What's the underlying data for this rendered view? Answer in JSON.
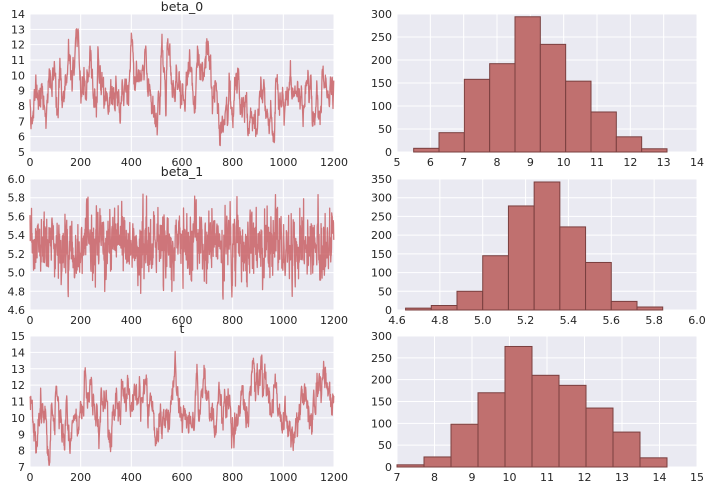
{
  "colors": {
    "accent": "#c44e52",
    "bar_fill": "#c0706f",
    "bar_edge": "#7a3f3f",
    "panel_bg": "#eaeaf2",
    "grid": "#ffffff"
  },
  "chart_data": [
    {
      "id": "trace-beta0",
      "type": "line",
      "title": "beta_0",
      "xlabel": "",
      "ylabel": "",
      "xlim": [
        0,
        1200
      ],
      "ylim": [
        5,
        14
      ],
      "xticks": [
        "0",
        "200",
        "400",
        "600",
        "800",
        "1000",
        "1200"
      ],
      "yticks": [
        "5",
        "6",
        "7",
        "8",
        "9",
        "10",
        "11",
        "12",
        "13",
        "14"
      ],
      "trace": {
        "n": 1200,
        "mean": 9.0,
        "sd": 1.35,
        "phi": 0.93,
        "min": 5.4,
        "max": 13.1,
        "seed": 11
      }
    },
    {
      "id": "hist-beta0",
      "type": "bar",
      "title": "",
      "xlim": [
        5,
        14
      ],
      "ylim": [
        0,
        300
      ],
      "xticks": [
        "5",
        "6",
        "7",
        "8",
        "9",
        "10",
        "11",
        "12",
        "13",
        "14"
      ],
      "yticks": [
        "0",
        "50",
        "100",
        "150",
        "200",
        "250",
        "300"
      ],
      "bin_edges": [
        5.5,
        6.26,
        7.02,
        7.78,
        8.54,
        9.3,
        10.06,
        10.82,
        11.58,
        12.34,
        13.1
      ],
      "values": [
        8,
        42,
        158,
        192,
        294,
        234,
        154,
        87,
        33,
        7
      ]
    },
    {
      "id": "trace-beta1",
      "type": "line",
      "title": "beta_1",
      "xlabel": "",
      "ylabel": "",
      "xlim": [
        0,
        1200
      ],
      "ylim": [
        4.6,
        6.0
      ],
      "xticks": [
        "0",
        "200",
        "400",
        "600",
        "800",
        "1000",
        "1200"
      ],
      "yticks": [
        "4.6",
        "4.8",
        "5.0",
        "5.2",
        "5.4",
        "5.6",
        "5.8",
        "6.0"
      ],
      "trace": {
        "n": 1200,
        "mean": 5.28,
        "sd": 0.18,
        "phi": 0.35,
        "min": 4.64,
        "max": 5.84,
        "seed": 23
      }
    },
    {
      "id": "hist-beta1",
      "type": "bar",
      "title": "",
      "xlim": [
        4.6,
        6.0
      ],
      "ylim": [
        0,
        350
      ],
      "xticks": [
        "4.6",
        "4.8",
        "5.0",
        "5.2",
        "5.4",
        "5.6",
        "5.8",
        "6.0"
      ],
      "yticks": [
        "0",
        "50",
        "100",
        "150",
        "200",
        "250",
        "300",
        "350"
      ],
      "bin_edges": [
        4.64,
        4.76,
        4.88,
        5.0,
        5.12,
        5.24,
        5.36,
        5.48,
        5.6,
        5.72,
        5.84
      ],
      "values": [
        5,
        12,
        50,
        145,
        278,
        342,
        222,
        127,
        23,
        8
      ]
    },
    {
      "id": "trace-t",
      "type": "line",
      "title": "t",
      "xlabel": "",
      "ylabel": "",
      "xlim": [
        0,
        1200
      ],
      "ylim": [
        7,
        15
      ],
      "xticks": [
        "0",
        "200",
        "400",
        "600",
        "800",
        "1000",
        "1200"
      ],
      "yticks": [
        "7",
        "8",
        "9",
        "10",
        "11",
        "12",
        "13",
        "14",
        "15"
      ],
      "trace": {
        "n": 1200,
        "mean": 10.8,
        "sd": 1.4,
        "phi": 0.95,
        "min": 7.1,
        "max": 14.2,
        "seed": 37
      }
    },
    {
      "id": "hist-t",
      "type": "bar",
      "title": "",
      "xlim": [
        7,
        15
      ],
      "ylim": [
        0,
        300
      ],
      "xticks": [
        "7",
        "8",
        "9",
        "10",
        "11",
        "12",
        "13",
        "14",
        "15"
      ],
      "yticks": [
        "0",
        "50",
        "100",
        "150",
        "200",
        "250",
        "300"
      ],
      "bin_edges": [
        7.0,
        7.72,
        8.44,
        9.16,
        9.88,
        10.6,
        11.32,
        12.04,
        12.76,
        13.48,
        14.2
      ],
      "values": [
        5,
        23,
        98,
        170,
        276,
        210,
        187,
        135,
        80,
        21
      ]
    }
  ]
}
